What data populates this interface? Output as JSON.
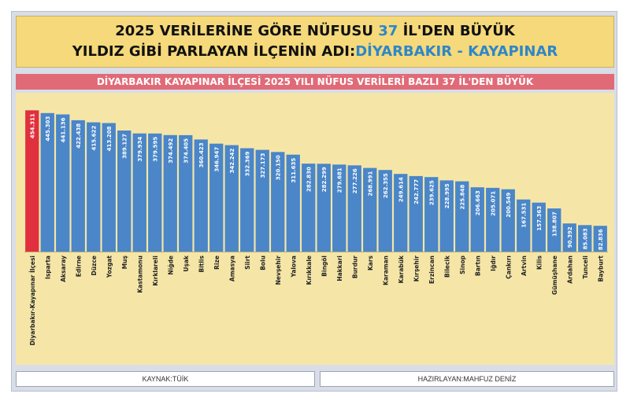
{
  "title": {
    "line1_prefix": "2025 VERİLERİNE GÖRE NÜFUSU ",
    "line1_accent": "37",
    "line1_suffix": " İL'DEN BÜYÜK",
    "line2_prefix": "YILDIZ GİBİ PARLAYAN İLÇENİN ADI:",
    "line2_accent": "DİYARBAKIR - KAYAPINAR"
  },
  "subtitle": "DİYARBAKIR KAYAPINAR İLÇESİ 2025 YILI NÜFUS VERİLERİ BAZLI 37 İL'DEN BÜYÜK",
  "footer": {
    "source": "KAYNAK:TÜİK",
    "author": "HAZIRLAYAN:MAHFUZ DENİZ"
  },
  "colors": {
    "highlight": "#e0303e",
    "bar": "#4a86c8",
    "background": "#f5e6a8"
  },
  "chart_data": {
    "type": "bar",
    "categories": [
      "Diyarbakır-Kayapınar İlçesi",
      "Isparta",
      "Aksaray",
      "Edirne",
      "Düzce",
      "Yozgat",
      "Muş",
      "Kastamonu",
      "Kırklareli",
      "Niğde",
      "Uşak",
      "Bitlis",
      "Rize",
      "Amasya",
      "Siirt",
      "Bolu",
      "Nevşehir",
      "Yalova",
      "Kırıkkale",
      "Bingöl",
      "Hakkari",
      "Burdur",
      "Kars",
      "Karaman",
      "Karabük",
      "Kırşehir",
      "Erzincan",
      "Bilecik",
      "Sinop",
      "Bartın",
      "Iğdır",
      "Çankırı",
      "Artvin",
      "Kilis",
      "Gümüşhane",
      "Ardahan",
      "Tunceli",
      "Bayburt"
    ],
    "values": [
      454311,
      445303,
      441136,
      422438,
      415622,
      413208,
      389127,
      379934,
      379595,
      374492,
      374405,
      360423,
      346947,
      342242,
      332369,
      327173,
      320150,
      311635,
      282830,
      282299,
      279681,
      277226,
      268991,
      262355,
      249614,
      242777,
      239625,
      228995,
      225848,
      206663,
      205071,
      200549,
      167531,
      157363,
      138807,
      90392,
      85083,
      82836
    ],
    "value_labels": [
      "454.311",
      "445.303",
      "441.136",
      "422.438",
      "415.622",
      "413.208",
      "389.127",
      "379.934",
      "379.595",
      "374.492",
      "374.405",
      "360.423",
      "346.947",
      "342.242",
      "332.369",
      "327.173",
      "320.150",
      "311.635",
      "282.830",
      "282.299",
      "279.681",
      "277.226",
      "268.991",
      "262.355",
      "249.614",
      "242.777",
      "239.625",
      "228.995",
      "225.848",
      "206.663",
      "205.071",
      "200.549",
      "167.531",
      "157.363",
      "138.807",
      "90.392",
      "85.083",
      "82.836"
    ],
    "highlight_index": 0,
    "ylim": [
      0,
      460000
    ],
    "grid": false,
    "legend": "none"
  }
}
